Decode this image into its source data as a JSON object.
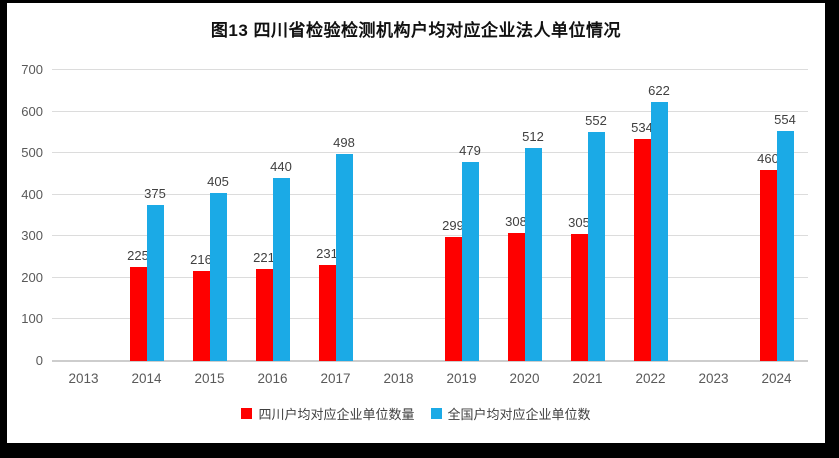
{
  "frame_color": "#000000",
  "background_color": "#ffffff",
  "chart_data": {
    "type": "bar",
    "title": "图13 四川省检验检测机构户均对应企业法人单位情况",
    "categories": [
      "2013",
      "2014",
      "2015",
      "2016",
      "2017",
      "2018",
      "2019",
      "2020",
      "2021",
      "2022",
      "2023",
      "2024"
    ],
    "series": [
      {
        "key": "sichuan",
        "name": "四川户均对应企业单位数量",
        "color": "#fe0000",
        "values": [
          null,
          225,
          216,
          221,
          231,
          null,
          299,
          308,
          305,
          534,
          null,
          460
        ]
      },
      {
        "key": "national",
        "name": "全国户均对应企业单位数",
        "color": "#1baae6",
        "values": [
          null,
          375,
          405,
          440,
          498,
          null,
          479,
          512,
          552,
          622,
          null,
          554
        ]
      }
    ],
    "ylim": [
      0,
      700
    ],
    "ytick_interval": 100,
    "yticks": [
      0,
      100,
      200,
      300,
      400,
      500,
      600,
      700
    ],
    "grid": true,
    "legend_position": "bottom",
    "xlabel": "",
    "ylabel": ""
  },
  "style": {
    "gridline_color": "#dcdcdc",
    "axis_line_color": "#cdcdcd",
    "axis_text_color": "#595959",
    "data_label_color": "#404040",
    "title_color": "#111111"
  }
}
